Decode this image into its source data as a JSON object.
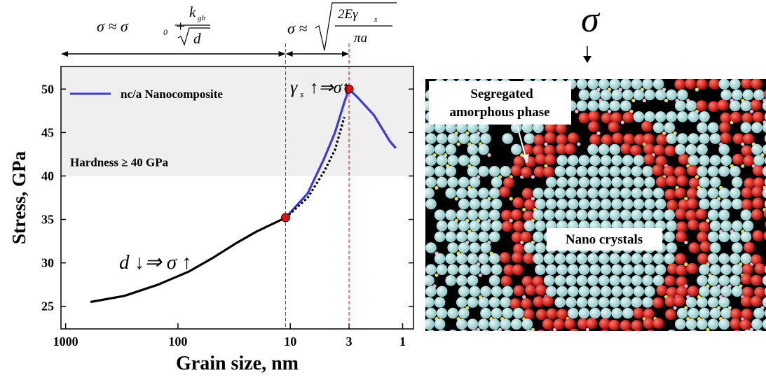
{
  "chart_data": {
    "type": "line",
    "xlabel": "Grain size, nm",
    "ylabel": "Stress, GPa",
    "xscale": "log",
    "xlim": [
      1100,
      0.8
    ],
    "xticks": [
      1000,
      100,
      10,
      3,
      1
    ],
    "ylim": [
      22.4,
      52.6
    ],
    "yticks": [
      25,
      30,
      35,
      40,
      45,
      50
    ],
    "legend": "upper left",
    "series": [
      {
        "color": "#000000",
        "dash": "solid",
        "x": [
          600,
          300,
          150,
          80,
          50,
          30,
          20,
          11
        ],
        "values": [
          25.5,
          26.2,
          27.5,
          29,
          30.5,
          32.3,
          33.6,
          35.2
        ]
      },
      {
        "name": "nc/a Nanocomposite",
        "color": "#3a3ae0",
        "dash": "solid",
        "x": [
          11,
          7,
          5,
          4,
          3.3,
          3,
          2.5,
          1.8,
          1.3,
          1.15
        ],
        "values": [
          35.2,
          38,
          42,
          45,
          48.5,
          50,
          49,
          47,
          44,
          43.2
        ]
      },
      {
        "color": "#000000",
        "dash": "dotted",
        "x": [
          11,
          7,
          5,
          4,
          3.3
        ],
        "values": [
          35.2,
          37.5,
          40.5,
          43,
          46.8
        ]
      }
    ],
    "points": {
      "color": "#e01010",
      "x": [
        11,
        3
      ],
      "values": [
        35.2,
        50
      ]
    },
    "shade": {
      "ymin": 40,
      "color": "#efefef",
      "label": "Hardness ≥ 40 GPa"
    },
    "annotations": {
      "hall_petch": {
        "lhs": "σ ≈ σ",
        "sub": "0",
        "plus": "+",
        "num": "k",
        "num_sub": "gb",
        "den": "d"
      },
      "griffith": {
        "lhs": "σ ≈",
        "num": "2Eγ",
        "num_sub": "s",
        "den": "πa"
      },
      "surface": {
        "text": "γ",
        "sub": "s",
        "rest": "↑⇒σ↑"
      },
      "size": "d ↓⇒ σ ↑"
    }
  },
  "image": {
    "stress_symbol": "σ",
    "labels": {
      "amorphous": [
        "Segregated",
        "amorphous phase"
      ],
      "crystals": "Nano crystals"
    }
  }
}
